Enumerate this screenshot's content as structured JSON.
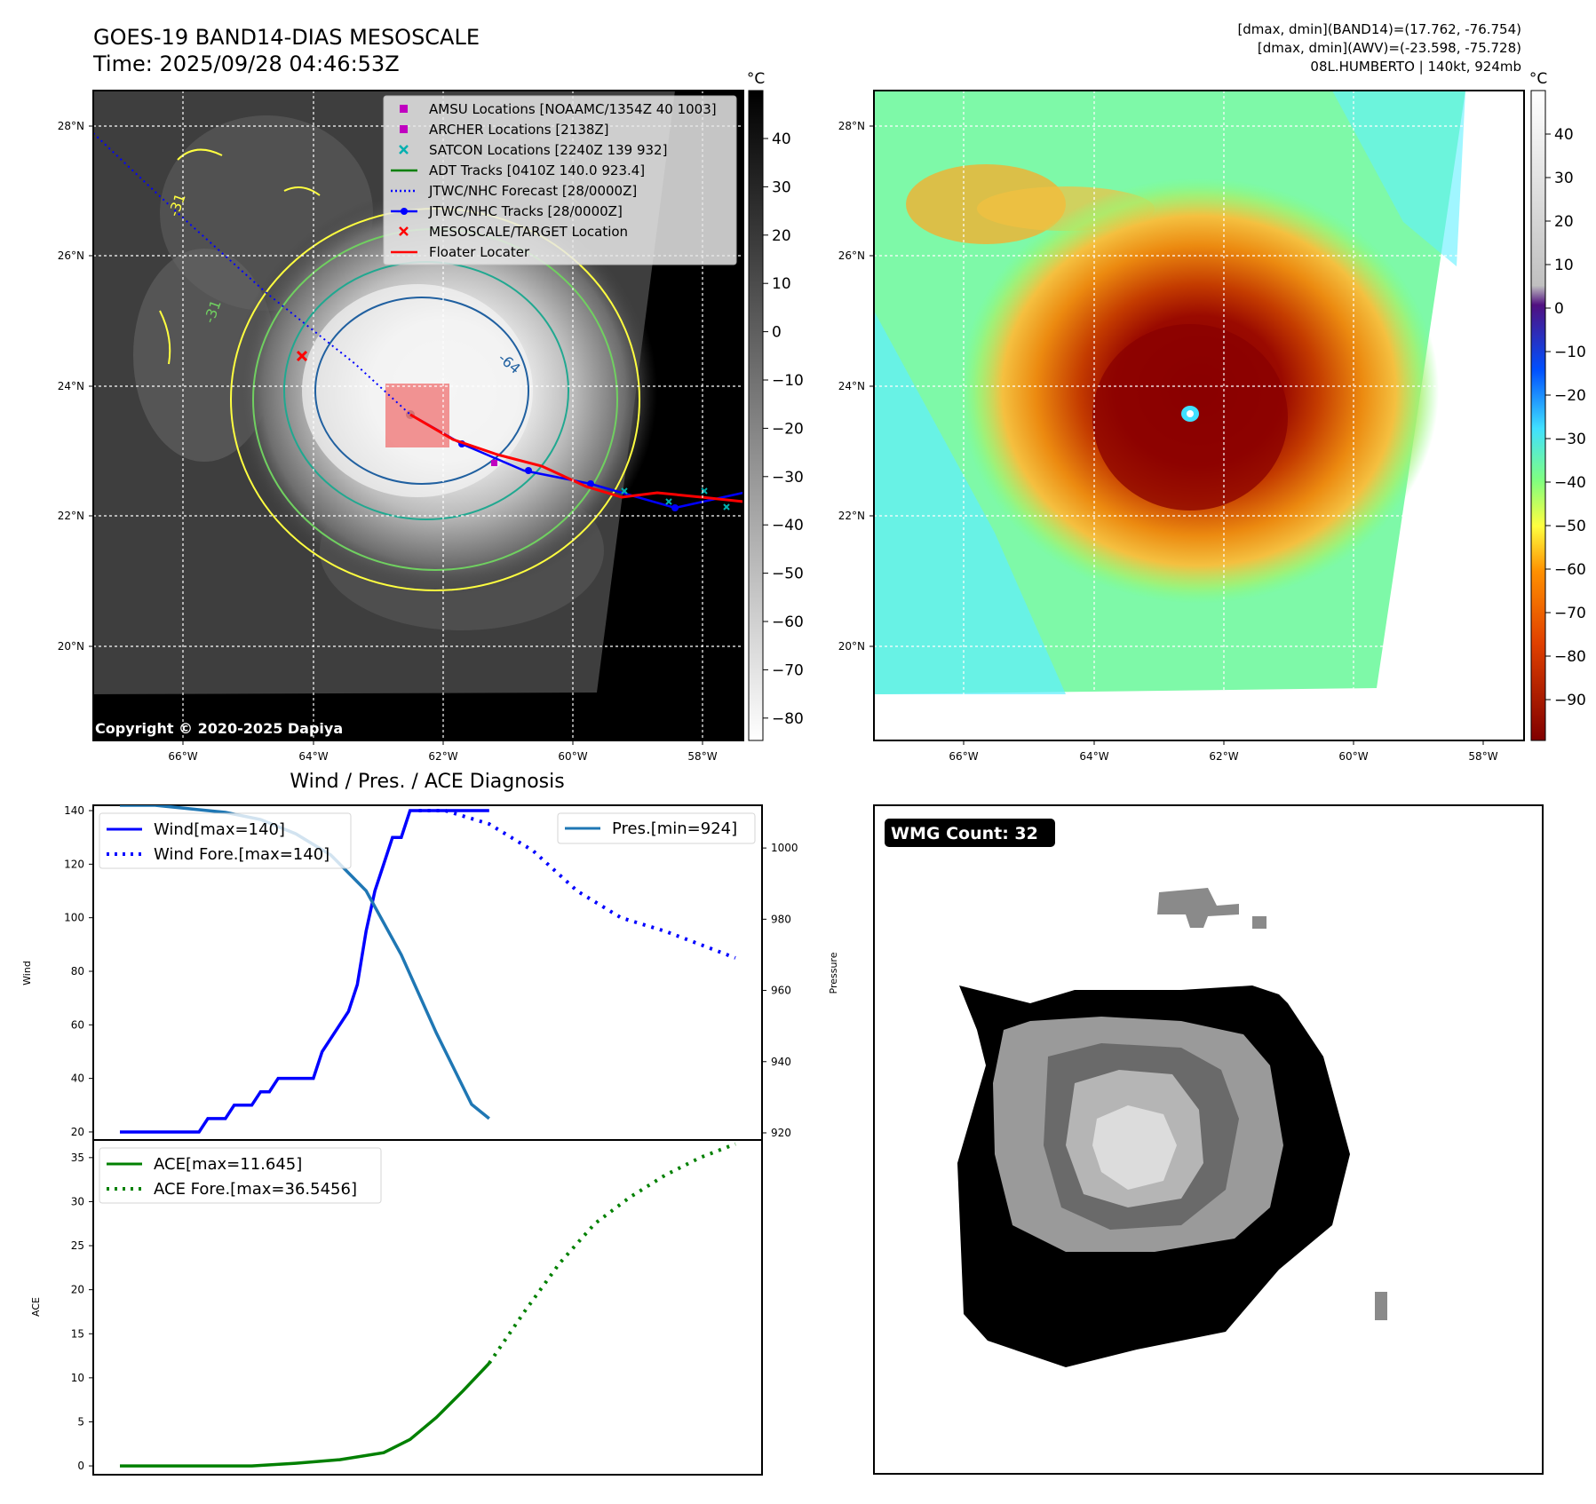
{
  "header": {
    "title_line1": "GOES-19 BAND14-DIAS MESOSCALE",
    "title_line2": "Time: 2025/09/28 04:46:53Z",
    "info_line1": "[dmax, dmin](BAND14)=(17.762, -76.754)",
    "info_line2": "[dmax, dmin](AWV)=(-23.598, -75.728)",
    "info_line3": "08L.HUMBERTO | 140kt, 924mb"
  },
  "map_panels": {
    "lat_labels": [
      "28°N",
      "26°N",
      "24°N",
      "22°N",
      "20°N"
    ],
    "lon_labels": [
      "66°W",
      "64°W",
      "62°W",
      "60°W",
      "58°W"
    ],
    "copyright": "Copyright © 2020-2025 Dapiya",
    "colorbar_unit": "°C",
    "gray_colorbar_ticks": [
      "40",
      "30",
      "20",
      "10",
      "0",
      "−10",
      "−20",
      "−30",
      "−40",
      "−50",
      "−60",
      "−70",
      "−80"
    ],
    "color_colorbar_ticks": [
      "40",
      "30",
      "20",
      "10",
      "0",
      "−10",
      "−20",
      "−30",
      "−40",
      "−50",
      "−60",
      "−70",
      "−80",
      "−90"
    ],
    "contour_labels": [
      "-31",
      "-31",
      "-64"
    ],
    "colors": {
      "target_box": "#f08080",
      "forecast": "#0000ff",
      "track": "#0000ff",
      "floater": "#ff0000",
      "adt": "#008000"
    }
  },
  "map_legend": [
    {
      "label": "AMSU Locations [NOAAMC/1354Z 40 1003]",
      "marker": "square",
      "color": "#c000c0"
    },
    {
      "label": "ARCHER Locations [2138Z]",
      "marker": "square",
      "color": "#c000c0"
    },
    {
      "label": "SATCON Locations [2240Z 139 932]",
      "marker": "x",
      "color": "#00b0b0"
    },
    {
      "label": "ADT Tracks [0410Z 140.0 923.4]",
      "marker": "line",
      "color": "#008000"
    },
    {
      "label": "JTWC/NHC Forecast [28/0000Z]",
      "marker": "dotted",
      "color": "#0000ff"
    },
    {
      "label": "JTWC/NHC Tracks [28/0000Z]",
      "marker": "line-dot",
      "color": "#0000ff"
    },
    {
      "label": "MESOSCALE/TARGET Location",
      "marker": "x",
      "color": "#ff0000"
    },
    {
      "label": "Floater Locater",
      "marker": "line",
      "color": "#ff0000"
    }
  ],
  "wmg": {
    "label": "WMG Count: 32"
  },
  "chart_data": [
    {
      "type": "line",
      "title": "Wind / Pres. / ACE Diagnosis",
      "ylabel": "Wind",
      "ylabel_right": "Pressure",
      "ylim": [
        17,
        142
      ],
      "ylim_right": [
        918,
        1012
      ],
      "yticks": [
        20,
        40,
        60,
        80,
        100,
        120,
        140
      ],
      "yticks_right": [
        920,
        940,
        960,
        980,
        1000
      ],
      "series": [
        {
          "name": "Wind[max=140]",
          "style": "solid",
          "color": "#0000ff",
          "x": [
            0,
            1,
            2,
            3,
            4,
            5,
            6,
            7,
            8,
            9,
            10,
            11,
            12,
            13,
            14,
            15,
            16,
            17,
            18,
            19,
            20,
            21,
            22,
            23,
            24,
            25,
            26,
            27,
            28,
            29,
            30,
            31,
            32,
            33,
            34,
            35,
            36,
            37,
            38,
            39,
            40,
            41,
            42
          ],
          "values": [
            20,
            20,
            20,
            20,
            20,
            20,
            20,
            20,
            20,
            20,
            25,
            25,
            25,
            30,
            30,
            30,
            35,
            35,
            40,
            40,
            40,
            40,
            40,
            50,
            55,
            60,
            65,
            75,
            95,
            110,
            120,
            130,
            130,
            140,
            140,
            140,
            140,
            140,
            140,
            140,
            140,
            140,
            140
          ]
        },
        {
          "name": "Wind Fore.[max=140]",
          "style": "dotted",
          "color": "#0000ff",
          "x": [
            34,
            37,
            42,
            47,
            52,
            57,
            62,
            66,
            70
          ],
          "values": [
            140,
            140,
            135,
            125,
            110,
            100,
            95,
            90,
            85
          ]
        },
        {
          "name": "Pres.[min=924]",
          "style": "solid",
          "color": "#1f77b4",
          "axis": "right",
          "x": [
            0,
            4,
            8,
            12,
            16,
            20,
            24,
            28,
            32,
            36,
            40,
            42
          ],
          "values": [
            1012,
            1012,
            1011,
            1010,
            1008,
            1004,
            998,
            988,
            970,
            948,
            928,
            924
          ]
        }
      ],
      "x_range": [
        0,
        70
      ]
    },
    {
      "type": "line",
      "ylabel": "ACE",
      "ylim": [
        -1,
        37
      ],
      "yticks": [
        0,
        5,
        10,
        15,
        20,
        25,
        30,
        35
      ],
      "series": [
        {
          "name": "ACE[max=11.645]",
          "style": "solid",
          "color": "#008000",
          "x": [
            0,
            5,
            10,
            15,
            20,
            25,
            30,
            33,
            36,
            39,
            42
          ],
          "values": [
            0,
            0,
            0,
            0,
            0.3,
            0.7,
            1.5,
            3.0,
            5.5,
            8.5,
            11.645
          ]
        },
        {
          "name": "ACE Fore.[max=36.5456]",
          "style": "dotted",
          "color": "#008000",
          "x": [
            42,
            46,
            50,
            54,
            58,
            62,
            66,
            70
          ],
          "values": [
            11.645,
            17.5,
            23,
            27.5,
            30.5,
            33,
            35,
            36.5456
          ]
        }
      ],
      "x_range": [
        0,
        70
      ]
    }
  ]
}
